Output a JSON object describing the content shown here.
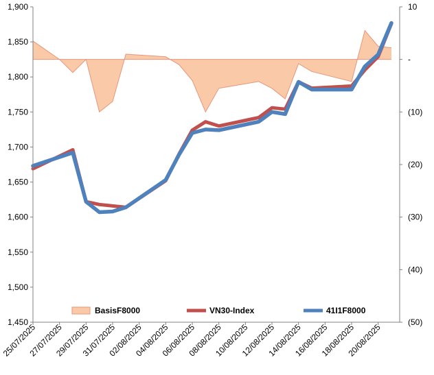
{
  "chart_data": {
    "type": "line",
    "dates": [
      "25/07/2025",
      "28/07/2025",
      "29/07/2025",
      "30/07/2025",
      "31/07/2025",
      "01/08/2025",
      "04/08/2025",
      "05/08/2025",
      "06/08/2025",
      "07/08/2025",
      "08/08/2025",
      "11/08/2025",
      "12/08/2025",
      "13/08/2025",
      "14/08/2025",
      "15/08/2025",
      "18/08/2025",
      "19/08/2025",
      "20/08/2025",
      "21/08/2025"
    ],
    "x_tick_labels": [
      "25/07/2025",
      "27/07/2025",
      "29/07/2025",
      "31/07/2025",
      "02/08/2025",
      "04/08/2025",
      "06/08/2025",
      "08/08/2025",
      "10/08/2025",
      "12/08/2025",
      "14/08/2025",
      "16/08/2025",
      "18/08/2025",
      "20/08/2025"
    ],
    "y_left": {
      "min": 1450,
      "max": 1900,
      "step": 50,
      "tick_labels": [
        "1,450",
        "1,500",
        "1,550",
        "1,600",
        "1,650",
        "1,700",
        "1,750",
        "1,800",
        "1,850",
        "1,900"
      ]
    },
    "y_right": {
      "min": -50,
      "max": 10,
      "step": 10,
      "tick_labels": [
        "(50)",
        "(40)",
        "(30)",
        "(20)",
        "(10)",
        "-",
        "10"
      ]
    },
    "series": [
      {
        "name": "BasisF8000",
        "axis": "right",
        "kind": "area",
        "color": "#f9c9a8",
        "edge": "#e7967a",
        "points": [
          [
            "25/07/2025",
            3.5
          ],
          [
            "27/07/2025",
            0
          ],
          [
            "28/07/2025",
            -2.5
          ],
          [
            "29/07/2025",
            0
          ],
          [
            "30/07/2025",
            -10
          ],
          [
            "31/07/2025",
            -8
          ],
          [
            "01/08/2025",
            1
          ],
          [
            "04/08/2025",
            0.5
          ],
          [
            "05/08/2025",
            -1
          ],
          [
            "06/08/2025",
            -4
          ],
          [
            "07/08/2025",
            -10
          ],
          [
            "08/08/2025",
            -5.5
          ],
          [
            "11/08/2025",
            -4.2
          ],
          [
            "12/08/2025",
            -5.5
          ],
          [
            "13/08/2025",
            -7.5
          ],
          [
            "14/08/2025",
            -0.8
          ],
          [
            "15/08/2025",
            -2.3
          ],
          [
            "18/08/2025",
            -4.2
          ],
          [
            "19/08/2025",
            5.5
          ],
          [
            "20/08/2025",
            2.5
          ],
          [
            "21/08/2025",
            2.2
          ]
        ]
      },
      {
        "name": "VN30-Index",
        "axis": "left",
        "kind": "line",
        "color": "#c0504d",
        "points": [
          [
            "25/07/2025",
            1669
          ],
          [
            "28/07/2025",
            1696
          ],
          [
            "29/07/2025",
            1622
          ],
          [
            "30/07/2025",
            1618
          ],
          [
            "01/08/2025",
            1614
          ],
          [
            "04/08/2025",
            1652
          ],
          [
            "05/08/2025",
            1690
          ],
          [
            "06/08/2025",
            1724
          ],
          [
            "07/08/2025",
            1736
          ],
          [
            "08/08/2025",
            1730
          ],
          [
            "11/08/2025",
            1742
          ],
          [
            "12/08/2025",
            1756
          ],
          [
            "13/08/2025",
            1754
          ],
          [
            "14/08/2025",
            1793
          ],
          [
            "15/08/2025",
            1784
          ],
          [
            "18/08/2025",
            1787
          ],
          [
            "19/08/2025",
            1810
          ],
          [
            "20/08/2025",
            1829
          ],
          [
            "21/08/2025",
            1876
          ]
        ]
      },
      {
        "name": "41I1F8000",
        "axis": "left",
        "kind": "line",
        "color": "#4f81bd",
        "points": [
          [
            "25/07/2025",
            1673
          ],
          [
            "28/07/2025",
            1692
          ],
          [
            "29/07/2025",
            1622
          ],
          [
            "30/07/2025",
            1607
          ],
          [
            "31/07/2025",
            1608
          ],
          [
            "01/08/2025",
            1614
          ],
          [
            "04/08/2025",
            1653
          ],
          [
            "05/08/2025",
            1689
          ],
          [
            "06/08/2025",
            1720
          ],
          [
            "07/08/2025",
            1725
          ],
          [
            "08/08/2025",
            1724
          ],
          [
            "11/08/2025",
            1736
          ],
          [
            "12/08/2025",
            1750
          ],
          [
            "13/08/2025",
            1747
          ],
          [
            "14/08/2025",
            1793
          ],
          [
            "15/08/2025",
            1782
          ],
          [
            "18/08/2025",
            1782
          ],
          [
            "19/08/2025",
            1815
          ],
          [
            "20/08/2025",
            1832
          ],
          [
            "21/08/2025",
            1877
          ]
        ]
      }
    ],
    "legend_position": "bottom-inside",
    "grid": false
  }
}
